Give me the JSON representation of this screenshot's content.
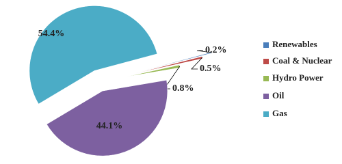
{
  "chart_data": {
    "type": "pie",
    "categories": [
      "Renewables",
      "Coal & Nuclear",
      "Hydro Power",
      "Oil",
      "Gas"
    ],
    "values": [
      0.2,
      0.5,
      0.8,
      44.1,
      54.4
    ],
    "value_labels": [
      "0.2%",
      "0.5%",
      "0.8%",
      "44.1%",
      "54.4%"
    ],
    "colors": [
      "#4a7ebb",
      "#be4b48",
      "#98b954",
      "#7d60a0",
      "#4bacc6"
    ],
    "legend": "right"
  }
}
